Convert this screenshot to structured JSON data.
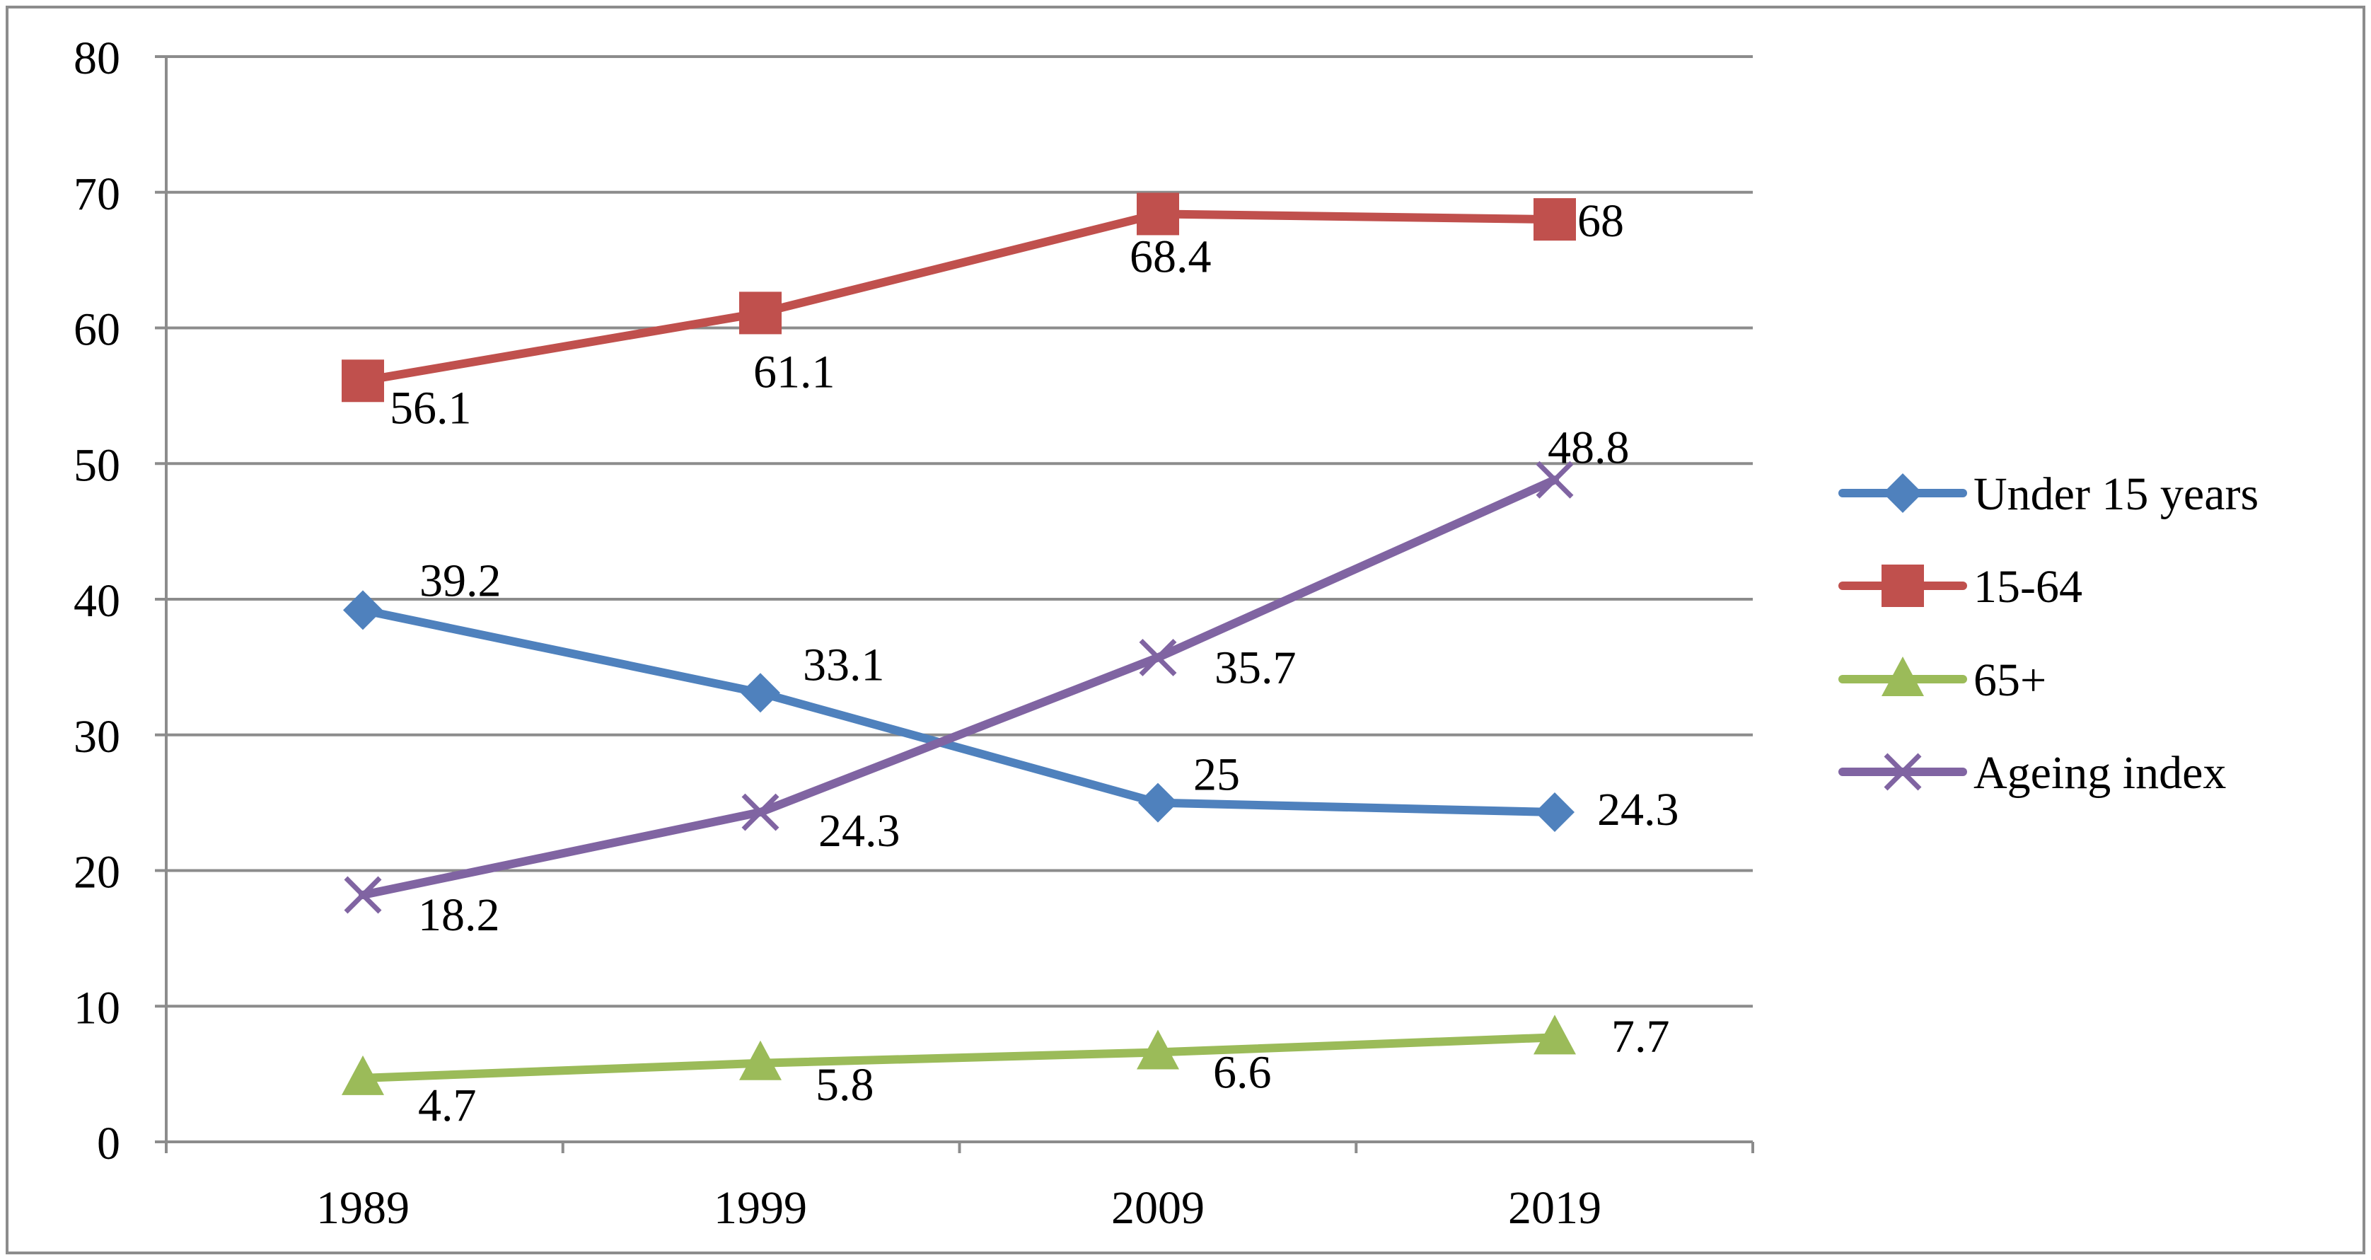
{
  "chart_data": {
    "type": "line",
    "title": "",
    "xlabel": "",
    "ylabel": "",
    "categories": [
      "1989",
      "1999",
      "2009",
      "2019"
    ],
    "ylim": [
      0,
      80
    ],
    "yticks": [
      0,
      10,
      20,
      30,
      40,
      50,
      60,
      70,
      80
    ],
    "ytick_labels": [
      "0",
      "10",
      "20",
      "30",
      "40",
      "50",
      "60",
      "70",
      "80"
    ],
    "grid": true,
    "legend_position": "right",
    "series": [
      {
        "name": "Under 15 years",
        "values": [
          39.2,
          33.1,
          25,
          24.3
        ],
        "labels": [
          "39.2",
          "33.1",
          "25",
          "24.3"
        ],
        "color": "#4F81BD",
        "marker": "diamond"
      },
      {
        "name": "15-64",
        "values": [
          56.1,
          61.1,
          68.4,
          68
        ],
        "labels": [
          "56.1",
          "61.1",
          "68.4",
          "68"
        ],
        "color": "#C0504D",
        "marker": "square"
      },
      {
        "name": "65+",
        "values": [
          4.7,
          5.8,
          6.6,
          7.7
        ],
        "labels": [
          "4.7",
          "5.8",
          "6.6",
          "7.7"
        ],
        "color": "#9BBB59",
        "marker": "triangle"
      },
      {
        "name": "Ageing index",
        "values": [
          18.2,
          24.3,
          35.7,
          48.8
        ],
        "labels": [
          "18.2",
          "24.3",
          "35.7",
          "48.8"
        ],
        "color": "#8064A2",
        "marker": "x"
      }
    ]
  }
}
